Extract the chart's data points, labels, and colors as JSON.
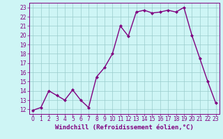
{
  "x": [
    0,
    1,
    2,
    3,
    4,
    5,
    6,
    7,
    8,
    9,
    10,
    11,
    12,
    13,
    14,
    15,
    16,
    17,
    18,
    19,
    20,
    21,
    22,
    23
  ],
  "y": [
    11.9,
    12.2,
    14.0,
    13.5,
    13.0,
    14.1,
    13.0,
    12.2,
    15.5,
    16.5,
    18.0,
    21.0,
    19.9,
    22.5,
    22.7,
    22.4,
    22.5,
    22.7,
    22.5,
    23.0,
    20.0,
    17.5,
    15.0,
    12.7
  ],
  "line_color": "#800080",
  "marker": "D",
  "marker_size": 2.0,
  "line_width": 1.0,
  "bg_color": "#cef5f5",
  "grid_color": "#99cccc",
  "xlabel": "Windchill (Refroidissement éolien,°C)",
  "xlabel_color": "#800080",
  "xlabel_fontsize": 6.5,
  "tick_color": "#800080",
  "tick_fontsize": 5.5,
  "ylim": [
    11.5,
    23.5
  ],
  "xlim": [
    -0.5,
    23.5
  ],
  "yticks": [
    12,
    13,
    14,
    15,
    16,
    17,
    18,
    19,
    20,
    21,
    22,
    23
  ],
  "xticks": [
    0,
    1,
    2,
    3,
    4,
    5,
    6,
    7,
    8,
    9,
    10,
    11,
    12,
    13,
    14,
    15,
    16,
    17,
    18,
    19,
    20,
    21,
    22,
    23
  ]
}
